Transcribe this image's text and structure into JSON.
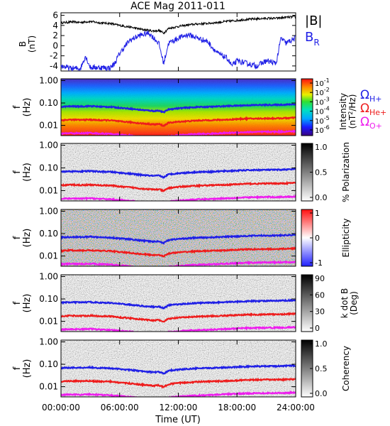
{
  "title": "ACE Mag 2011-011",
  "x_label": "Time (UT)",
  "x_ticks": [
    "00:00:00",
    "06:00:00",
    "12:00:00",
    "18:00:00",
    "24:00:00"
  ],
  "legend": {
    "b_total": "|B|",
    "b_radial_main": "B",
    "b_radial_sub": "R"
  },
  "gyro_labels": [
    {
      "main": "Ω",
      "sub": "H+",
      "color": "#1f1fe6"
    },
    {
      "main": "Ω",
      "sub": "He+",
      "color": "#ee1c1c"
    },
    {
      "main": "Ω",
      "sub": "O+",
      "color": "#ee1cee"
    }
  ],
  "freq_axis": {
    "label_f": "f",
    "label_unit": "(Hz)",
    "ticks": [
      "1.00",
      "0.10",
      "0.01"
    ]
  },
  "colorbars": {
    "intensity": {
      "ticks": [
        {
          "base": "10",
          "exp": "-1"
        },
        {
          "base": "10",
          "exp": "-2"
        },
        {
          "base": "10",
          "exp": "-3"
        },
        {
          "base": "10",
          "exp": "-4"
        },
        {
          "base": "10",
          "exp": "-5"
        },
        {
          "base": "10",
          "exp": "-6"
        }
      ],
      "label_line1": "Intensity",
      "label_line2_pre": "(nT",
      "label_line2_exp": "2",
      "label_line2_post": "/Hz)"
    },
    "polarization": {
      "ticks": [
        "1.0",
        "0.5",
        "0.0"
      ],
      "label": "% Polarization"
    },
    "ellipticity": {
      "ticks": [
        "1",
        "0",
        "-1"
      ],
      "label": "Ellipticity"
    },
    "kdotb": {
      "ticks": [
        "90",
        "60",
        "30",
        "0"
      ],
      "label_line1": "k dot B",
      "label_line2": "(Deg)"
    },
    "coherency": {
      "ticks": [
        "1.0",
        "0.5",
        "0.0"
      ],
      "label": "Coherency"
    }
  },
  "colors": {
    "black": "#000000",
    "blue": "#1f1fe6",
    "red": "#ee1c1c",
    "magenta": "#ee1cee"
  },
  "chart_data": [
    {
      "type": "line",
      "panel": "magnetic-field",
      "ylabel": "B (nT)",
      "yticks": [
        6,
        4,
        2,
        0,
        -2,
        -4
      ],
      "ylim": [
        -5,
        6.5
      ],
      "xlim": [
        0,
        24
      ],
      "series": [
        {
          "name": "|B|",
          "color": "#000000",
          "x": [
            0,
            1,
            2,
            3,
            4,
            5,
            6,
            7,
            8,
            9,
            9.5,
            10,
            10.5,
            11,
            12,
            13,
            14,
            15,
            16,
            17,
            18,
            19,
            20,
            21,
            22,
            23,
            24
          ],
          "values": [
            4.5,
            4.7,
            4.6,
            4.8,
            4.5,
            4.4,
            4.0,
            3.7,
            3.3,
            3.0,
            2.9,
            3.0,
            2.5,
            3.4,
            3.8,
            4.1,
            4.3,
            4.4,
            4.6,
            4.8,
            5.0,
            5.2,
            5.3,
            5.4,
            5.4,
            5.6,
            5.7
          ]
        },
        {
          "name": "B_R",
          "color": "#1f1fe6",
          "x": [
            0,
            1,
            2,
            2.5,
            3,
            4,
            5,
            5.5,
            6,
            7,
            8,
            9,
            9.5,
            10,
            10.5,
            11,
            12,
            13,
            14,
            15,
            16,
            17,
            17.5,
            18,
            19,
            20,
            21,
            22,
            22.5,
            23,
            24
          ],
          "values": [
            -4.0,
            -4.5,
            -4.5,
            -2.0,
            -4.3,
            -4.3,
            -4.4,
            -3.5,
            -1.5,
            1.0,
            2.0,
            2.5,
            1.5,
            0.5,
            -3.5,
            0.5,
            1.5,
            2.2,
            1.5,
            0.8,
            -1.5,
            -2.5,
            -4.0,
            -3.0,
            -3.5,
            -4.0,
            -3.0,
            -3.5,
            1.5,
            0.5,
            1.5
          ]
        }
      ]
    },
    {
      "type": "heatmap",
      "panel": "intensity",
      "ylabel": "f (Hz)",
      "yscale": "log",
      "ylim": [
        0.004,
        1.0
      ],
      "colorbar_range": [
        1e-06,
        0.3
      ]
    },
    {
      "type": "heatmap",
      "panel": "polarization",
      "ylabel": "f (Hz)",
      "yscale": "log",
      "colorbar_range": [
        0,
        1.0
      ]
    },
    {
      "type": "heatmap",
      "panel": "ellipticity",
      "ylabel": "f (Hz)",
      "yscale": "log",
      "colorbar_range": [
        -1,
        1
      ]
    },
    {
      "type": "heatmap",
      "panel": "kdotb",
      "ylabel": "f (Hz)",
      "yscale": "log",
      "colorbar_range": [
        0,
        90
      ]
    },
    {
      "type": "heatmap",
      "panel": "coherency",
      "ylabel": "f (Hz)",
      "yscale": "log",
      "colorbar_range": [
        0,
        1.0
      ]
    },
    {
      "type": "line",
      "panel": "gyrofrequencies",
      "xlim": [
        0,
        24
      ],
      "yscale": "log",
      "series": [
        {
          "name": "ΩH+",
          "color": "#1f1fe6",
          "x": [
            0,
            1,
            2,
            3,
            4,
            5,
            6,
            7,
            8,
            9,
            9.5,
            10,
            10.5,
            11,
            12,
            13,
            14,
            15,
            16,
            17,
            18,
            19,
            20,
            21,
            22,
            23,
            24
          ],
          "values": [
            0.068,
            0.071,
            0.07,
            0.073,
            0.068,
            0.067,
            0.061,
            0.056,
            0.05,
            0.046,
            0.044,
            0.046,
            0.038,
            0.052,
            0.058,
            0.062,
            0.066,
            0.067,
            0.07,
            0.073,
            0.076,
            0.079,
            0.081,
            0.082,
            0.082,
            0.085,
            0.087
          ]
        },
        {
          "name": "ΩHe+",
          "color": "#ee1c1c",
          "x": [
            0,
            1,
            2,
            3,
            4,
            5,
            6,
            7,
            8,
            9,
            9.5,
            10,
            10.5,
            11,
            12,
            13,
            14,
            15,
            16,
            17,
            18,
            19,
            20,
            21,
            22,
            23,
            24
          ],
          "values": [
            0.017,
            0.018,
            0.0175,
            0.018,
            0.017,
            0.017,
            0.015,
            0.014,
            0.0125,
            0.0115,
            0.011,
            0.0115,
            0.0095,
            0.013,
            0.0145,
            0.0155,
            0.0165,
            0.017,
            0.0175,
            0.018,
            0.019,
            0.02,
            0.02,
            0.0205,
            0.0205,
            0.021,
            0.022
          ]
        },
        {
          "name": "ΩO+",
          "color": "#ee1cee",
          "x": [
            0,
            1,
            2,
            3,
            4,
            5,
            6,
            7,
            8,
            9,
            9.5,
            10,
            10.5,
            11,
            12,
            13,
            14,
            15,
            16,
            17,
            18,
            19,
            20,
            21,
            22,
            23,
            24
          ],
          "values": [
            0.0043,
            0.0045,
            0.0044,
            0.0046,
            0.0043,
            0.0042,
            0.0038,
            0.0035,
            0.0031,
            0.0029,
            0.0028,
            0.0029,
            0.0024,
            0.0033,
            0.0036,
            0.0039,
            0.0041,
            0.0042,
            0.0044,
            0.0046,
            0.0048,
            0.005,
            0.0051,
            0.0052,
            0.0052,
            0.0053,
            0.0055
          ]
        }
      ]
    }
  ]
}
